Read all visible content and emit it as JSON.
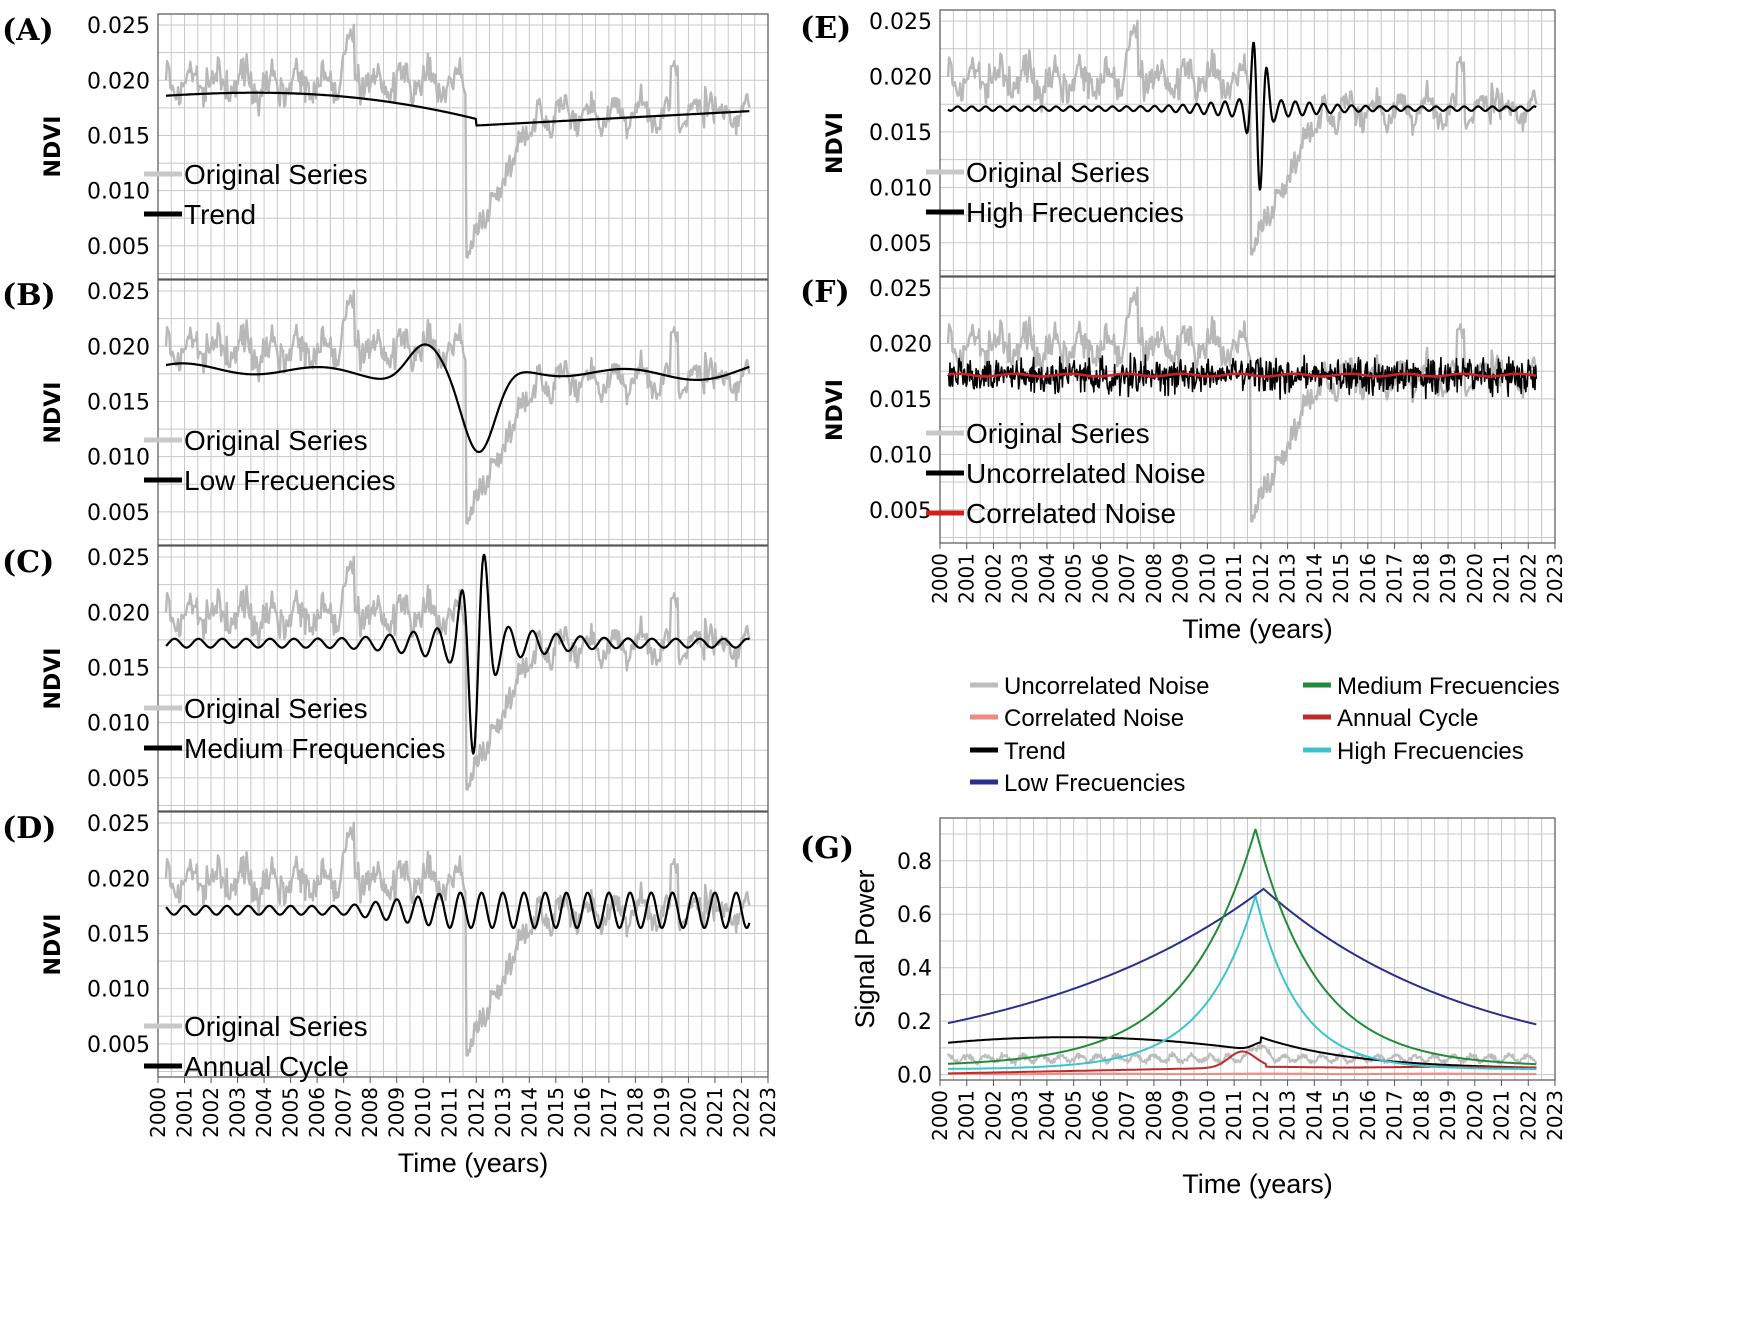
{
  "chart_data": [
    {
      "id": "A",
      "label": "(A)",
      "type": "line",
      "ylabel": "NDVI",
      "ylim": [
        0.002,
        0.026
      ],
      "yticks": [
        "0.005",
        "0.010",
        "0.015",
        "0.020",
        "0.025"
      ],
      "xlim": [
        2000,
        2023
      ],
      "series": [
        {
          "name": "Original Series",
          "color": "#b8b8b8",
          "kind": "original"
        },
        {
          "name": "Trend",
          "color": "#000000",
          "kind": "trend"
        }
      ]
    },
    {
      "id": "B",
      "label": "(B)",
      "type": "line",
      "ylabel": "NDVI",
      "ylim": [
        0.002,
        0.026
      ],
      "yticks": [
        "0.005",
        "0.010",
        "0.015",
        "0.020",
        "0.025"
      ],
      "xlim": [
        2000,
        2023
      ],
      "series": [
        {
          "name": "Original Series",
          "color": "#b8b8b8",
          "kind": "original"
        },
        {
          "name": "Low Frecuencies",
          "color": "#000000",
          "kind": "low"
        }
      ]
    },
    {
      "id": "C",
      "label": "(C)",
      "type": "line",
      "ylabel": "NDVI",
      "ylim": [
        0.002,
        0.026
      ],
      "yticks": [
        "0.005",
        "0.010",
        "0.015",
        "0.020",
        "0.025"
      ],
      "xlim": [
        2000,
        2023
      ],
      "series": [
        {
          "name": "Original Series",
          "color": "#b8b8b8",
          "kind": "original"
        },
        {
          "name": "Medium Frequencies",
          "color": "#000000",
          "kind": "medium"
        }
      ]
    },
    {
      "id": "D",
      "label": "(D)",
      "type": "line",
      "ylabel": "NDVI",
      "ylim": [
        0.002,
        0.026
      ],
      "yticks": [
        "0.005",
        "0.010",
        "0.015",
        "0.020",
        "0.025"
      ],
      "xlim": [
        2000,
        2023
      ],
      "xlabel": "Time (years)",
      "series": [
        {
          "name": "Original Series",
          "color": "#b8b8b8",
          "kind": "original"
        },
        {
          "name": "Annual Cycle",
          "color": "#000000",
          "kind": "annual"
        }
      ]
    },
    {
      "id": "E",
      "label": "(E)",
      "type": "line",
      "ylabel": "NDVI",
      "ylim": [
        0.002,
        0.026
      ],
      "yticks": [
        "0.005",
        "0.010",
        "0.015",
        "0.020",
        "0.025"
      ],
      "xlim": [
        2000,
        2023
      ],
      "series": [
        {
          "name": "Original Series",
          "color": "#b8b8b8",
          "kind": "original"
        },
        {
          "name": "High Frecuencies",
          "color": "#000000",
          "kind": "high"
        }
      ]
    },
    {
      "id": "F",
      "label": "(F)",
      "type": "line",
      "ylabel": "NDVI",
      "ylim": [
        0.002,
        0.026
      ],
      "yticks": [
        "0.005",
        "0.010",
        "0.015",
        "0.020",
        "0.025"
      ],
      "xlim": [
        2000,
        2023
      ],
      "xlabel": "Time (years)",
      "series": [
        {
          "name": "Original Series",
          "color": "#b8b8b8",
          "kind": "original"
        },
        {
          "name": "Uncorrelated Noise",
          "color": "#000000",
          "kind": "unc"
        },
        {
          "name": "Correlated Noise",
          "color": "#d02020",
          "kind": "corr"
        }
      ]
    },
    {
      "id": "G",
      "label": "(G)",
      "type": "line",
      "ylabel": "Signal Power",
      "ylim": [
        -0.02,
        0.96
      ],
      "yticks": [
        "0.0",
        "0.2",
        "0.4",
        "0.6",
        "0.8"
      ],
      "xlim": [
        2000,
        2023
      ],
      "xlabel": "Time (years)",
      "series": [
        {
          "name": "Uncorrelated Noise",
          "color": "#bdbdbd",
          "kind": "p_unc"
        },
        {
          "name": "Correlated Noise",
          "color": "#f08a80",
          "kind": "p_corr"
        },
        {
          "name": "Trend",
          "color": "#000000",
          "kind": "p_trend"
        },
        {
          "name": "Low Frecuencies",
          "color": "#2b2f8c",
          "kind": "p_low"
        },
        {
          "name": "Medium Frecuencies",
          "color": "#228b3a",
          "kind": "p_med"
        },
        {
          "name": "Annual Cycle",
          "color": "#c02a2a",
          "kind": "p_ann"
        },
        {
          "name": "High Frecuencies",
          "color": "#3cc4cc",
          "kind": "p_high"
        }
      ]
    }
  ],
  "xticks": [
    "2000",
    "2001",
    "2002",
    "2003",
    "2004",
    "2005",
    "2006",
    "2007",
    "2008",
    "2009",
    "2010",
    "2011",
    "2012",
    "2013",
    "2014",
    "2015",
    "2016",
    "2017",
    "2018",
    "2019",
    "2020",
    "2021",
    "2022",
    "2023"
  ],
  "legend_g": [
    {
      "name": "Uncorrelated Noise",
      "color": "#bdbdbd"
    },
    {
      "name": "Medium Frecuencies",
      "color": "#228b3a"
    },
    {
      "name": "Correlated Noise",
      "color": "#f08a80"
    },
    {
      "name": "Annual Cycle",
      "color": "#c02a2a"
    },
    {
      "name": "Trend",
      "color": "#000000"
    },
    {
      "name": "High Frecuencies",
      "color": "#3cc4cc"
    },
    {
      "name": "Low Frecuencies",
      "color": "#2b2f8c"
    }
  ]
}
